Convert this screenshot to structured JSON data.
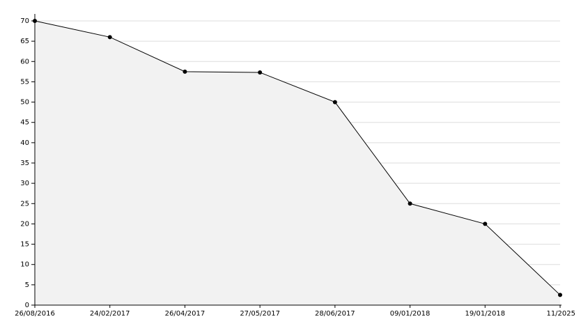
{
  "chart_data": {
    "type": "area",
    "categories": [
      "26/08/2016",
      "24/02/2017",
      "26/04/2017",
      "27/05/2017",
      "28/06/2017",
      "09/01/2018",
      "19/01/2018",
      "11/2025"
    ],
    "values": [
      70,
      66,
      57.5,
      57.3,
      50,
      25,
      20,
      2.5
    ],
    "color": "#000000",
    "fill": "#f2f2f2",
    "ylim": [
      0,
      70
    ],
    "yticks": [
      0,
      5,
      10,
      15,
      20,
      25,
      30,
      35,
      40,
      45,
      50,
      55,
      60,
      65,
      70
    ],
    "grid": true
  }
}
